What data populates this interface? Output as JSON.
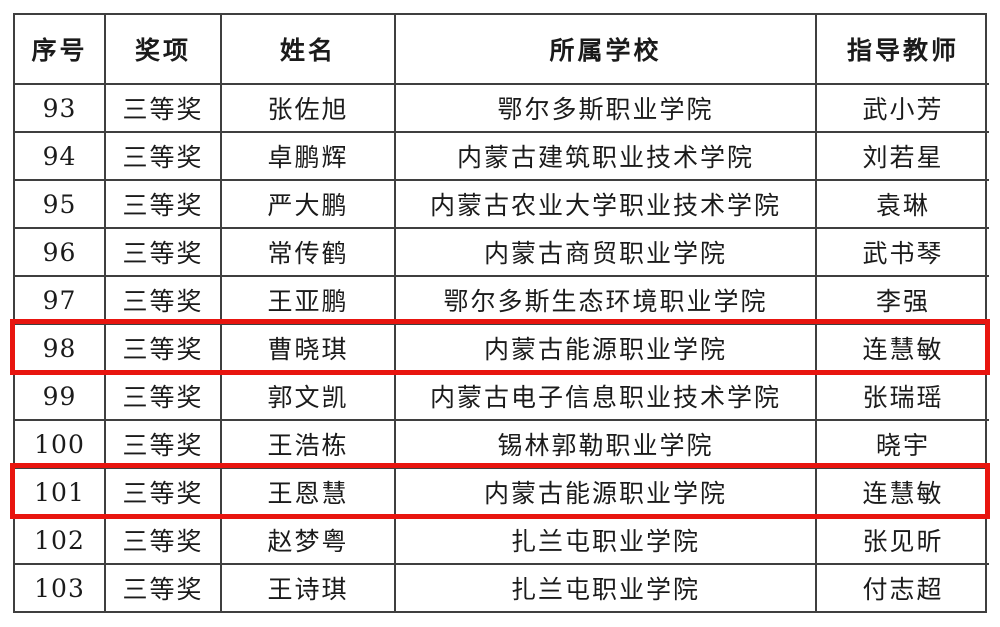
{
  "table": {
    "columns": [
      {
        "key": "no",
        "label": "序号"
      },
      {
        "key": "award",
        "label": "奖项"
      },
      {
        "key": "name",
        "label": "姓名"
      },
      {
        "key": "school",
        "label": "所属学校"
      },
      {
        "key": "teacher",
        "label": "指导教师"
      }
    ],
    "rows": [
      {
        "no": "93",
        "award": "三等奖",
        "name": "张佐旭",
        "school": "鄂尔多斯职业学院",
        "teacher": "武小芳",
        "highlighted": false
      },
      {
        "no": "94",
        "award": "三等奖",
        "name": "卓鹏辉",
        "school": "内蒙古建筑职业技术学院",
        "teacher": "刘若星",
        "highlighted": false
      },
      {
        "no": "95",
        "award": "三等奖",
        "name": "严大鹏",
        "school": "内蒙古农业大学职业技术学院",
        "teacher": "袁琳",
        "highlighted": false
      },
      {
        "no": "96",
        "award": "三等奖",
        "name": "常传鹤",
        "school": "内蒙古商贸职业学院",
        "teacher": "武书琴",
        "highlighted": false
      },
      {
        "no": "97",
        "award": "三等奖",
        "name": "王亚鹏",
        "school": "鄂尔多斯生态环境职业学院",
        "teacher": "李强",
        "highlighted": false
      },
      {
        "no": "98",
        "award": "三等奖",
        "name": "曹晓琪",
        "school": "内蒙古能源职业学院",
        "teacher": "连慧敏",
        "highlighted": true
      },
      {
        "no": "99",
        "award": "三等奖",
        "name": "郭文凯",
        "school": "内蒙古电子信息职业技术学院",
        "teacher": "张瑞瑶",
        "highlighted": false
      },
      {
        "no": "100",
        "award": "三等奖",
        "name": "王浩栋",
        "school": "锡林郭勒职业学院",
        "teacher": "晓宇",
        "highlighted": false
      },
      {
        "no": "101",
        "award": "三等奖",
        "name": "王恩慧",
        "school": "内蒙古能源职业学院",
        "teacher": "连慧敏",
        "highlighted": true
      },
      {
        "no": "102",
        "award": "三等奖",
        "name": "赵梦粤",
        "school": "扎兰屯职业学院",
        "teacher": "张见昕",
        "highlighted": false
      },
      {
        "no": "103",
        "award": "三等奖",
        "name": "王诗琪",
        "school": "扎兰屯职业学院",
        "teacher": "付志超",
        "highlighted": false
      }
    ]
  },
  "colors": {
    "highlight_border": "#e8150f",
    "grid_line": "#3f3f3f",
    "text": "#1b1b1b",
    "background": "#ffffff"
  }
}
